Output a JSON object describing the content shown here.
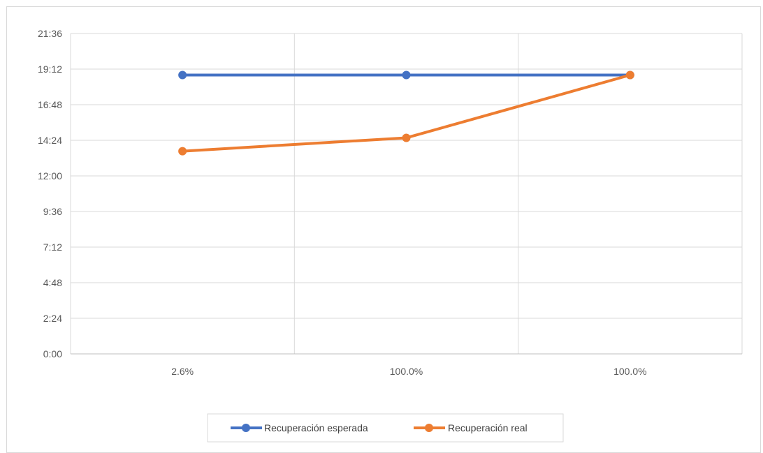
{
  "chart_data": {
    "type": "line",
    "title": "",
    "xlabel": "",
    "ylabel": "",
    "categories": [
      "2.6%",
      "100.0%",
      "100.0%"
    ],
    "y_ticks": [
      "0:00",
      "2:24",
      "4:48",
      "7:12",
      "9:36",
      "12:00",
      "14:24",
      "16:48",
      "19:12",
      "21:36"
    ],
    "ylim_minutes": [
      0,
      1296
    ],
    "grid": true,
    "legend": "bottom",
    "series": [
      {
        "name": "Recuperación esperada",
        "color": "#4472C4",
        "values_minutes": [
          1128,
          1128,
          1128
        ]
      },
      {
        "name": "Recuperación real",
        "color": "#ED7D31",
        "values_minutes": [
          820,
          874,
          1128
        ]
      }
    ]
  }
}
